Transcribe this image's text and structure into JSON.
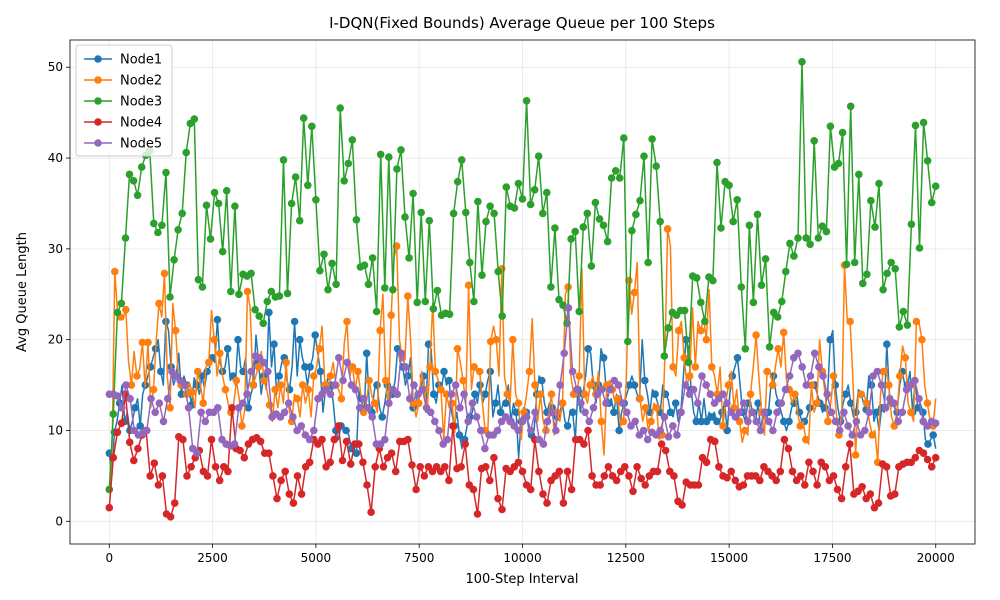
{
  "chart_data": {
    "type": "line",
    "title": "I-DQN(Fixed Bounds) Average Queue per 100 Steps",
    "xlabel": "100-Step Interval",
    "ylabel": "Avg Queue Length",
    "xlim": [
      -950,
      20950
    ],
    "ylim": [
      -2.5,
      53
    ],
    "xticks": [
      0,
      2500,
      5000,
      7500,
      10000,
      12500,
      15000,
      17500,
      20000
    ],
    "yticks": [
      0,
      10,
      20,
      30,
      40,
      50
    ],
    "legend": "top-left",
    "grid": true,
    "sample_step": 100,
    "series": [
      {
        "name": "Node1",
        "color": "#1f77b4",
        "values": [
          7.5,
          5,
          9.8,
          11,
          13,
          15,
          11,
          12,
          10,
          11,
          12.5,
          13.5,
          10.5,
          14,
          15,
          16,
          17,
          18,
          19,
          20,
          16.5,
          15,
          22,
          21,
          17,
          15,
          16,
          18.5,
          14,
          16,
          15,
          14.5,
          12.8,
          15.8,
          15,
          14,
          16,
          14.7,
          16.5,
          17,
          18,
          17.5,
          22.2,
          17.5,
          16.5,
          17,
          19,
          15.5,
          16,
          15,
          20,
          17,
          16.5,
          18,
          12.5,
          14,
          15,
          20.5,
          17.5,
          14,
          16,
          14.5,
          23,
          17,
          19.5,
          14,
          16,
          17.5,
          18,
          15.5,
          14.5,
          17,
          22,
          16,
          20,
          18,
          17,
          15,
          17,
          18,
          20.5,
          18.5,
          16.5,
          12,
          14.5,
          16,
          15,
          13,
          10,
          9,
          10.5,
          10.4,
          10,
          9.5,
          8,
          7.7,
          7.5,
          14.3,
          13.5,
          12,
          18.5,
          13,
          12,
          14.5,
          15,
          12.5,
          11.5,
          13,
          15,
          13.5,
          14,
          15.5,
          19,
          17.5,
          17,
          15,
          16,
          18,
          12.5,
          14,
          13,
          14.5,
          16,
          12,
          19.5,
          19,
          14,
          13,
          15,
          14.5,
          16.5,
          15,
          15.5,
          12,
          10.5,
          12,
          9.5,
          8,
          9,
          10.5,
          11.5,
          12,
          14,
          13,
          15,
          13,
          14,
          15.5,
          16.5,
          11.5,
          13,
          15,
          12,
          13,
          13,
          15,
          11,
          13,
          12,
          7,
          11,
          12.5,
          12,
          10,
          9.5,
          10,
          14,
          16,
          15.5,
          13,
          12,
          13,
          12.5,
          12,
          11.5,
          12,
          13,
          11,
          10.5,
          12,
          12,
          9,
          14.5,
          12,
          14,
          16,
          19,
          18.5,
          15,
          13,
          15,
          19,
          18,
          14.5,
          13,
          13.5,
          12,
          14,
          10,
          12,
          13,
          14,
          15,
          16,
          15,
          14,
          13.5,
          20,
          15.5,
          14,
          12,
          14.5,
          14,
          13,
          12,
          15,
          14,
          13.5,
          12,
          11.5,
          13,
          11,
          12,
          16,
          20,
          19,
          14.5,
          12,
          11,
          13,
          11,
          13.5,
          11,
          12,
          11.5,
          12,
          11,
          11,
          12,
          13,
          10,
          14,
          16,
          17,
          18,
          15,
          12,
          11,
          13,
          13,
          12,
          11,
          13,
          10,
          12,
          11,
          12,
          15,
          16,
          14,
          13,
          12,
          11,
          10,
          11,
          12.5,
          13,
          14,
          12,
          11,
          11,
          11.5,
          12.5,
          15,
          15,
          14,
          13,
          12,
          12.5,
          14,
          20,
          21,
          15,
          12.5,
          11,
          13,
          14,
          15,
          13,
          11.5,
          12,
          14.5,
          14,
          13,
          12.3,
          16,
          15,
          11,
          12,
          10,
          12.5,
          12,
          19.5,
          14,
          13,
          12.5,
          12,
          15,
          16.5,
          15,
          15,
          16.5,
          12,
          15.5,
          12.5,
          13,
          12,
          9,
          8.5,
          9,
          9.5,
          8
        ],
        "marker_every": 2
      },
      {
        "name": "Node2",
        "color": "#ff7f0e",
        "values": [
          3.5,
          7,
          27.5,
          23,
          22.5,
          22.2,
          23.3,
          17.5,
          15,
          18.7,
          16,
          16.8,
          19.7,
          14.8,
          19.7,
          12.5,
          14.5,
          19.8,
          24,
          22.5,
          27.3,
          16,
          12.5,
          24,
          21,
          16,
          15,
          15.5,
          14,
          15.3,
          14.2,
          12.5,
          16.5,
          15,
          13,
          17,
          17.5,
          23.2,
          20,
          16,
          18.5,
          16,
          14.5,
          13,
          12,
          12.8,
          15.5,
          13.5,
          10.5,
          12.2,
          25.3,
          23.5,
          15,
          16,
          17,
          18.7,
          15.5,
          14.5,
          12.8,
          11,
          14.5,
          12.5,
          15,
          13,
          17.5,
          12.5,
          11,
          14,
          13.5,
          11.5,
          15,
          13,
          14.5,
          11.5,
          16,
          17,
          19,
          21.5,
          15,
          14,
          16,
          17.5,
          15,
          14.5,
          13.5,
          19.5,
          22,
          16,
          17,
          14.5,
          16.5,
          14,
          12,
          13,
          15.5,
          13.8,
          13,
          12,
          21,
          25,
          15.5,
          12.5,
          22.7,
          29,
          30.3,
          20,
          18,
          17.8,
          24.8,
          20,
          13,
          11.5,
          13,
          16.5,
          14.5,
          12,
          17,
          24,
          16.5,
          15.5,
          14.5,
          9,
          14,
          12.5,
          13,
          9.8,
          19,
          17.5,
          15.5,
          13,
          26,
          14.5,
          17,
          16.5,
          16.5,
          13,
          10,
          10,
          19.8,
          21.5,
          20,
          16,
          27.8,
          16,
          14,
          13,
          20,
          14,
          13,
          9,
          12,
          14,
          16.5,
          22.3,
          15,
          11,
          14,
          11,
          10,
          12,
          14,
          9.5,
          12,
          11,
          13,
          25,
          25.8,
          16,
          14,
          13.7,
          16,
          27.8,
          14,
          13,
          15,
          16,
          14,
          16.5,
          11,
          7.3,
          15,
          15.5,
          14.5,
          13,
          13.5,
          10.5,
          11,
          15.3,
          26.5,
          22.8,
          25.2,
          28.5,
          13.5,
          11,
          12.5,
          10,
          11,
          13,
          12.5,
          9,
          9.5,
          18,
          32.2,
          30.3,
          17,
          16,
          21,
          22,
          18,
          15,
          16,
          23.5,
          17,
          22,
          21,
          22.5,
          20,
          25.5,
          17,
          16,
          14,
          17,
          10.5,
          13,
          15,
          16.5,
          12.5,
          14.5,
          11,
          8.7,
          10,
          9.5,
          14,
          17,
          20.5,
          16,
          12,
          9.5,
          16.5,
          16.5,
          15,
          17,
          19,
          17,
          20.8,
          15.5,
          14.5,
          13,
          14,
          12,
          10.5,
          11,
          9,
          8.5,
          15,
          12,
          13,
          20,
          16.5,
          14,
          11,
          13,
          16,
          12,
          9.5,
          12,
          28.2,
          22,
          22,
          16,
          7.3,
          14,
          14,
          14,
          13,
          11,
          9.5,
          10,
          6.5,
          14,
          16.5,
          17,
          15,
          11.5,
          10.5,
          12,
          16,
          19.3,
          18,
          13,
          12,
          11,
          22,
          21.8,
          20,
          15,
          13,
          11,
          10.5,
          13.5
        ],
        "marker_every": 2
      },
      {
        "name": "Node3",
        "color": "#2ca02c",
        "values": [
          3.5,
          11.8,
          23,
          24,
          31.2,
          38.2,
          37.5,
          35.9,
          39,
          40.3,
          40.8,
          32.8,
          31.8,
          32.6,
          38.4,
          24.7,
          28.8,
          32.1,
          33.9,
          40.6,
          43.8,
          44.3,
          26.6,
          25.8,
          34.8,
          31.1,
          36.2,
          35,
          29.7,
          36.4,
          25.3,
          34.7,
          25,
          27.2,
          27,
          27.3,
          23.3,
          22.6,
          21.8,
          24.2,
          25.3,
          24.7,
          24.8,
          39.8,
          25.1,
          35,
          37.9,
          33.1,
          44.4,
          37,
          43.5,
          35.4,
          27.6,
          29.4,
          25.5,
          28.4,
          26.1,
          45.5,
          37.5,
          39.4,
          42,
          33.2,
          28,
          28.2,
          26.1,
          29,
          23.1,
          40.4,
          25.7,
          40.1,
          25.5,
          38.8,
          40.9,
          33.5,
          29,
          36.1,
          24.1,
          34,
          24.2,
          33.1,
          23.4,
          25.4,
          22.7,
          22.9,
          22.8,
          33.9,
          37.4,
          39.8,
          34,
          28.5,
          24.2,
          35.2,
          27.1,
          33,
          34.7,
          33.9,
          27.5,
          22.6,
          36.8,
          34.7,
          34.5,
          37.2,
          35.5,
          46.3,
          34.9,
          36.5,
          40.2,
          33.9,
          36.2,
          25.8,
          32.3,
          24.4,
          23.8,
          21.8,
          31.1,
          31.9,
          23.1,
          32.4,
          33.9,
          28.1,
          35.1,
          33.3,
          32.6,
          30.8,
          37.8,
          38.6,
          37.8,
          42.2,
          19.8,
          32,
          33.8,
          35.3,
          40.2,
          28.5,
          42.1,
          39.1,
          33,
          18.2,
          21.3,
          23,
          22.7,
          23.2,
          23.2,
          17.5,
          27,
          26.8,
          24.1,
          22,
          26.9,
          26.5,
          39.5,
          32.3,
          37.4,
          37,
          33,
          35.4,
          25.8,
          19,
          32.6,
          24.1,
          33.8,
          26,
          28.9,
          19.2,
          23,
          22.5,
          24.2,
          27.5,
          30.6,
          29.2,
          31.2,
          50.6,
          31.2,
          30.5,
          41.9,
          31.2,
          32.5,
          31.9,
          43.5,
          39,
          39.4,
          42.8,
          28.3,
          45.7,
          28.5,
          38.2,
          26.2,
          27.2,
          35.3,
          32.4,
          37.2,
          25.5,
          27.3,
          28.5,
          27.8,
          21.4,
          23.1,
          21.6,
          32.7,
          43.6,
          30.1,
          43.9,
          39.7,
          35.1,
          36.9
        ],
        "marker_every": 1
      },
      {
        "name": "Node4",
        "color": "#d62728",
        "values": [
          1.5,
          7,
          9.8,
          10.8,
          14,
          8.7,
          6.7,
          8,
          9.5,
          10,
          5,
          6.4,
          4,
          5,
          0.8,
          0.5,
          2,
          9.3,
          9,
          5,
          6,
          7,
          7.8,
          5.5,
          5,
          9,
          6,
          4.5,
          6,
          5.5,
          12.5,
          8,
          7.8,
          7,
          8.5,
          9,
          9.2,
          8.8,
          7.5,
          7.5,
          5,
          2.5,
          4.5,
          5.5,
          3,
          2,
          5,
          3,
          6,
          6.5,
          9,
          8.5,
          9,
          6,
          6.5,
          9,
          10.5,
          6.7,
          8.8,
          6.3,
          8.5,
          8.5,
          6.5,
          4,
          1,
          6,
          8,
          6,
          7,
          7.5,
          5.5,
          8.8,
          8.8,
          9,
          6.2,
          3.5,
          6,
          5,
          6,
          5.5,
          6,
          5.5,
          6,
          4.5,
          10.5,
          5.8,
          6,
          8.5,
          4,
          3.5,
          0.8,
          5.8,
          6,
          4.5,
          7,
          2.5,
          1.3,
          5.8,
          5.5,
          6,
          6.5,
          5.5,
          4,
          3.5,
          9,
          5.5,
          3,
          2,
          4.5,
          5,
          5.5,
          2,
          5.5,
          3.5,
          9,
          9,
          8.5,
          10,
          5,
          4,
          4,
          5,
          6,
          5,
          4.5,
          5.5,
          6,
          5,
          3.3,
          6,
          4.7,
          4,
          5,
          5.5,
          5.5,
          8.5,
          7.8,
          5.5,
          5,
          2.2,
          1.8,
          4.3,
          4,
          4,
          4,
          7,
          6.5,
          9,
          8.8,
          6,
          5,
          4.8,
          5.5,
          4.5,
          3.8,
          4,
          5,
          5,
          5,
          4.5,
          6,
          5.5,
          5,
          4.5,
          5.5,
          9,
          8,
          5.5,
          4.5,
          5,
          4,
          6.5,
          5.5,
          4,
          6.5,
          6,
          4.5,
          5,
          3.5,
          2.5,
          6,
          8.5,
          3,
          3.3,
          3.8,
          2.5,
          3,
          1.5,
          2,
          6.3,
          6,
          2.8,
          3,
          6,
          6.3,
          6.5,
          6.5,
          7,
          7.8,
          7.5,
          6.8,
          6,
          7
        ],
        "marker_every": 1
      },
      {
        "name": "Node5",
        "color": "#9467bd",
        "values": [
          14,
          14,
          13.8,
          12.5,
          15,
          13.5,
          10,
          9.5,
          9.7,
          10,
          13.5,
          12,
          13,
          11,
          13.5,
          16.5,
          16,
          15.5,
          15,
          12.5,
          8,
          7.5,
          12,
          11,
          12,
          12,
          12.5,
          9,
          8.5,
          8.3,
          8.5,
          12.5,
          13,
          14,
          16.5,
          18.2,
          18,
          17.5,
          16.5,
          11.5,
          11.8,
          11.5,
          12,
          13,
          11.5,
          10,
          10.5,
          9.5,
          9,
          10,
          13.5,
          14,
          14.5,
          14,
          15,
          18,
          15.5,
          17.5,
          15,
          14.5,
          12.5,
          13.5,
          12.5,
          11.5,
          8.5,
          8.5,
          9,
          13,
          14.5,
          14,
          18.5,
          17,
          13.5,
          15,
          14,
          14.5,
          12.5,
          12,
          11,
          10,
          8.5,
          9,
          14,
          15,
          12.5,
          14,
          11,
          13,
          11.5,
          10,
          8,
          9.5,
          9.5,
          10,
          11,
          11.5,
          11,
          10.5,
          10,
          11,
          11.5,
          10,
          12,
          9,
          8.5,
          11,
          12,
          10,
          15,
          18.5,
          23.5,
          16.5,
          14.5,
          13,
          12,
          11,
          12.5,
          14,
          14.5,
          13,
          14.5,
          15.5,
          15,
          13,
          12,
          10.5,
          11,
          9.5,
          10,
          9,
          9.8,
          9.5,
          10,
          11.5,
          9.3,
          10.5,
          9.5,
          12,
          15,
          14,
          14.5,
          13,
          16,
          15,
          14,
          13,
          13.5,
          14,
          13,
          12,
          11.5,
          12,
          13,
          11,
          12,
          11,
          10,
          12,
          11,
          10,
          12,
          13,
          14.5,
          16,
          18,
          18.5,
          17,
          15,
          16,
          18.5,
          17,
          16,
          14,
          12,
          11,
          10,
          12,
          10.5,
          9.5,
          11,
          9.5,
          10,
          12,
          16,
          16.5,
          15,
          12.5,
          13.5,
          13,
          11,
          12,
          14.5,
          15,
          15.5,
          13.5,
          11,
          10.5,
          11,
          10.8
        ],
        "marker_every": 1
      }
    ]
  }
}
